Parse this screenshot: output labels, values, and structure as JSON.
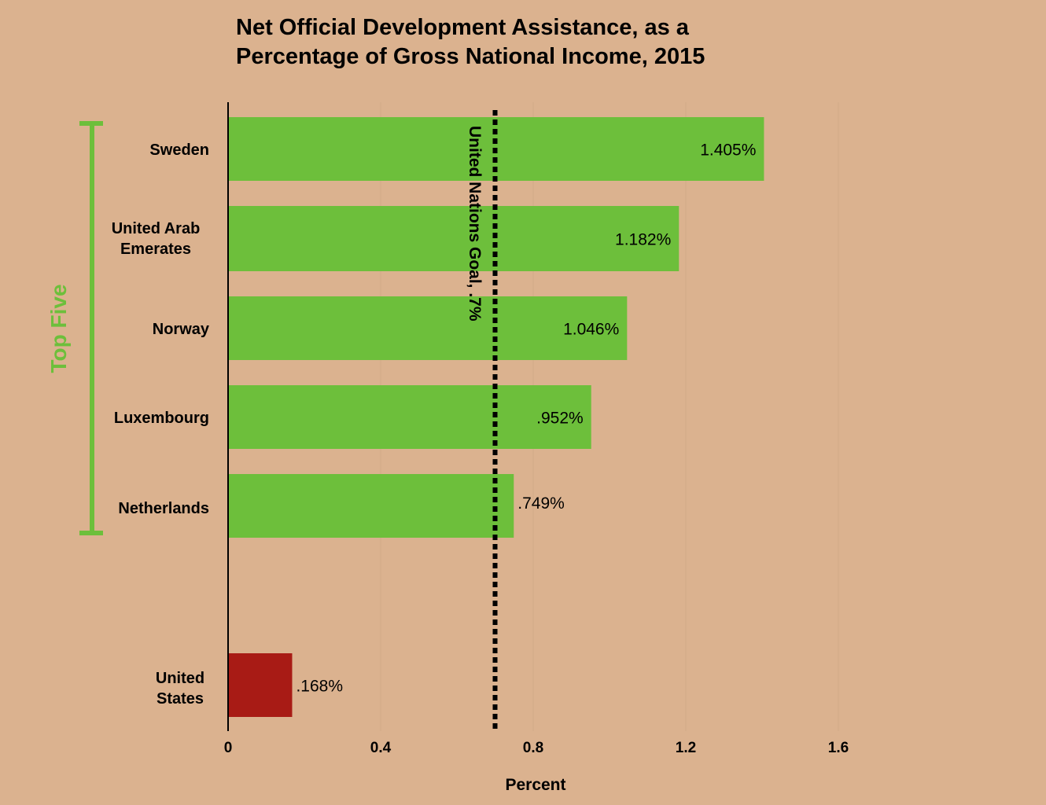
{
  "chart_data": {
    "type": "bar",
    "orientation": "horizontal",
    "title_lines": [
      "Net Official Development Assistance, as a",
      "Percentage of Gross National Income, 2015"
    ],
    "xlabel": "Percent",
    "ylabel": "",
    "xlim": [
      0,
      1.6
    ],
    "xticks": [
      {
        "value": 0,
        "label": "0"
      },
      {
        "value": 0.4,
        "label": "0.4"
      },
      {
        "value": 0.8,
        "label": "0.8"
      },
      {
        "value": 1.2,
        "label": "1.2"
      },
      {
        "value": 1.6,
        "label": "1.6"
      }
    ],
    "grid": true,
    "categories": [
      {
        "lines": [
          "Sweden"
        ]
      },
      {
        "lines": [
          "United Arab",
          "Emerates"
        ]
      },
      {
        "lines": [
          "Norway"
        ]
      },
      {
        "lines": [
          "Luxembourg"
        ]
      },
      {
        "lines": [
          "Netherlands"
        ]
      },
      {
        "lines": [
          "United",
          "States"
        ]
      }
    ],
    "values": [
      1.405,
      1.182,
      1.046,
      0.952,
      0.749,
      0.168
    ],
    "value_labels": [
      "1.405%",
      "1.182%",
      "1.046%",
      ".952%",
      ".749%",
      ".168%"
    ],
    "bar_colors": [
      "#6dbf3b",
      "#6dbf3b",
      "#6dbf3b",
      "#6dbf3b",
      "#6dbf3b",
      "#a81b15"
    ],
    "reference_line": {
      "value": 0.7,
      "label": "United Nations Goal, .7%"
    },
    "group_bracket": {
      "label": "Top Five",
      "color": "#6dbf3b",
      "from_index": 0,
      "to_index": 4
    }
  },
  "colors": {
    "background": "#dbb28f",
    "top_five": "#6dbf3b",
    "united_states": "#a81b15",
    "text": "#000000"
  }
}
